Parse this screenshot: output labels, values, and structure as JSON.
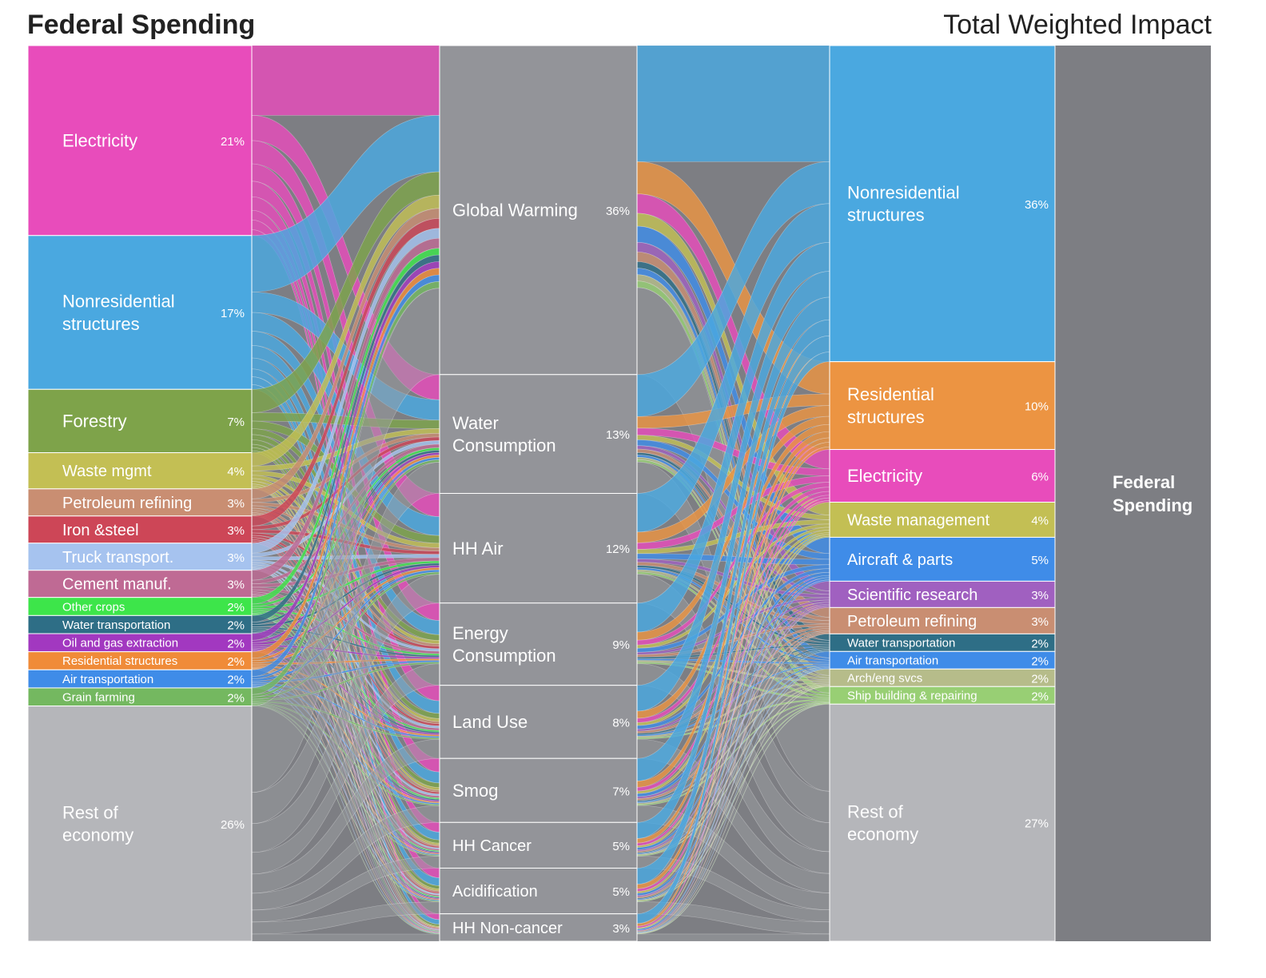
{
  "titles": {
    "left": "Federal Spending",
    "right": "Total Weighted Impact"
  },
  "chart_data": {
    "type": "sankey",
    "source_sectors": [
      {
        "label": "Electricity",
        "pct": "21%",
        "value": 21,
        "color": "#e84cbb"
      },
      {
        "label": "Nonresidential structures",
        "pct": "17%",
        "value": 17,
        "color": "#4aa8e0"
      },
      {
        "label": "Forestry",
        "pct": "7%",
        "value": 7,
        "color": "#7ea34a"
      },
      {
        "label": "Waste mgmt",
        "pct": "4%",
        "value": 4,
        "color": "#c3bf54"
      },
      {
        "label": "Petroleum refining",
        "pct": "3%",
        "value": 3,
        "color": "#c98e72"
      },
      {
        "label": "Iron &steel",
        "pct": "3%",
        "value": 3,
        "color": "#cd4657"
      },
      {
        "label": "Truck transport.",
        "pct": "3%",
        "value": 3,
        "color": "#a6c3ef"
      },
      {
        "label": "Cement manuf.",
        "pct": "3%",
        "value": 3,
        "color": "#bf6a94"
      },
      {
        "label": "Other crops",
        "pct": "2%",
        "value": 2,
        "color": "#3de54a"
      },
      {
        "label": "Water transportation",
        "pct": "2%",
        "value": 2,
        "color": "#2e6e86"
      },
      {
        "label": "Oil and gas extraction",
        "pct": "2%",
        "value": 2,
        "color": "#a238c0"
      },
      {
        "label": "Residential structures",
        "pct": "2%",
        "value": 2,
        "color": "#f08b38"
      },
      {
        "label": "Air transportation",
        "pct": "2%",
        "value": 2,
        "color": "#3f8ce8"
      },
      {
        "label": "Grain farming",
        "pct": "2%",
        "value": 2,
        "color": "#74b860"
      },
      {
        "label": "Rest of economy",
        "pct": "26%",
        "value": 26,
        "color": "#b5b6ba"
      }
    ],
    "impacts": [
      {
        "label": "Global Warming",
        "pct": "36%",
        "value": 36
      },
      {
        "label": "Water Consumption",
        "pct": "13%",
        "value": 13
      },
      {
        "label": "HH Air",
        "pct": "12%",
        "value": 12
      },
      {
        "label": "Energy Consumption",
        "pct": "9%",
        "value": 9
      },
      {
        "label": "Land Use",
        "pct": "8%",
        "value": 8
      },
      {
        "label": "Smog",
        "pct": "7%",
        "value": 7
      },
      {
        "label": "HH Cancer",
        "pct": "5%",
        "value": 5
      },
      {
        "label": "Acidification",
        "pct": "5%",
        "value": 5
      },
      {
        "label": "HH Non-cancer",
        "pct": "3%",
        "value": 3
      }
    ],
    "impact_color": "#939499",
    "final_sectors": [
      {
        "label": "Nonresidential structures",
        "pct": "36%",
        "value": 36,
        "color": "#4aa8e0"
      },
      {
        "label": "Residential structures",
        "pct": "10%",
        "value": 10,
        "color": "#ec9442"
      },
      {
        "label": "Electricity",
        "pct": "6%",
        "value": 6,
        "color": "#e84cbb"
      },
      {
        "label": "Waste management",
        "pct": "4%",
        "value": 4,
        "color": "#c3bf54"
      },
      {
        "label": "Aircraft & parts",
        "pct": "5%",
        "value": 5,
        "color": "#3f8ce8"
      },
      {
        "label": "Scientific research",
        "pct": "3%",
        "value": 3,
        "color": "#a060c0"
      },
      {
        "label": "Petroleum refining",
        "pct": "3%",
        "value": 3,
        "color": "#c98e72"
      },
      {
        "label": "Water transportation",
        "pct": "2%",
        "value": 2,
        "color": "#2e6e86"
      },
      {
        "label": "Air transportation",
        "pct": "2%",
        "value": 2,
        "color": "#3f8ce8"
      },
      {
        "label": "Arch/eng svcs",
        "pct": "2%",
        "value": 2,
        "color": "#b6bc8a"
      },
      {
        "label": "Ship building & repairing",
        "pct": "2%",
        "value": 2,
        "color": "#98cf74"
      },
      {
        "label": "Rest of economy",
        "pct": "27%",
        "value": 27,
        "color": "#b5b6ba"
      }
    ],
    "sink": {
      "label": "Federal Spending",
      "color": "#7d7e83"
    },
    "flow_base_color": "#7d7e83"
  }
}
